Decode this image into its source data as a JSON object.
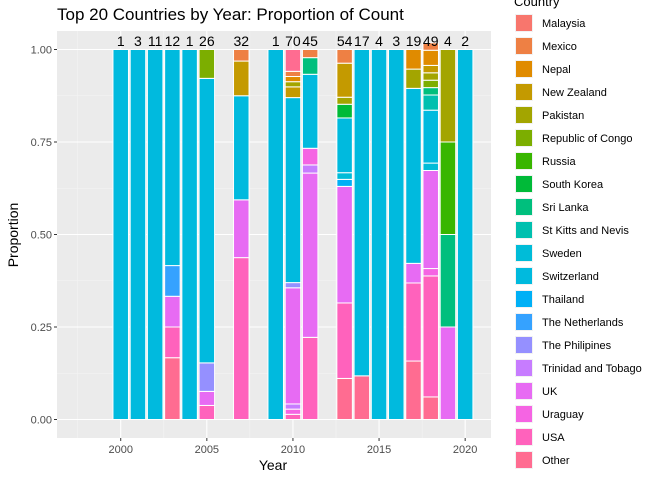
{
  "chart_data": {
    "type": "bar",
    "title": "Top 20 Countries by Year: Proportion of Count",
    "xlabel": "Year",
    "ylabel": "Proportion",
    "xlim": [
      1996.3,
      2021.5
    ],
    "ylim": [
      -0.05,
      1.05
    ],
    "x_ticks": [
      2000,
      2005,
      2010,
      2015,
      2020
    ],
    "y_ticks": [
      0,
      0.25,
      0.5,
      0.75,
      1
    ],
    "y_tick_labels": [
      "0.00",
      "0.25",
      "0.50",
      "0.75",
      "1.00"
    ],
    "grid": true,
    "legend_position": "right",
    "legend": {
      "title": "Country",
      "entries": [
        {
          "name": "Malaysia",
          "color": "#F8766D"
        },
        {
          "name": "Mexico",
          "color": "#EE8044"
        },
        {
          "name": "Nepal",
          "color": "#E08B00"
        },
        {
          "name": "New Zealand",
          "color": "#C49A00"
        },
        {
          "name": "Pakistan",
          "color": "#A3A500"
        },
        {
          "name": "Republic of Congo",
          "color": "#7CAE00"
        },
        {
          "name": "Russia",
          "color": "#39B600"
        },
        {
          "name": "South Korea",
          "color": "#00BA38"
        },
        {
          "name": "Sri Lanka",
          "color": "#00BF7D"
        },
        {
          "name": "St Kitts and Nevis",
          "color": "#00C0AF"
        },
        {
          "name": "Sweden",
          "color": "#00BCD8"
        },
        {
          "name": "Switzerland",
          "color": "#00BADE"
        },
        {
          "name": "Thailand",
          "color": "#00B0F6"
        },
        {
          "name": "The Netherlands",
          "color": "#35A2FF"
        },
        {
          "name": "The Philipines",
          "color": "#9590FF"
        },
        {
          "name": "Trinidad and Tobago",
          "color": "#C77CFF"
        },
        {
          "name": "UK",
          "color": "#E76BF3"
        },
        {
          "name": "Uraguay",
          "color": "#F564E3"
        },
        {
          "name": "USA",
          "color": "#FF62BC"
        },
        {
          "name": "Other",
          "color": "#FF6C91"
        }
      ]
    },
    "bars": [
      {
        "year": 2000,
        "count": "1",
        "segments": [
          [
            "Switzerland",
            1
          ]
        ]
      },
      {
        "year": 2001,
        "count": "3",
        "segments": [
          [
            "Switzerland",
            1
          ]
        ]
      },
      {
        "year": 2002,
        "count": "11",
        "segments": [
          [
            "Switzerland",
            1
          ]
        ]
      },
      {
        "year": 2003,
        "count": "12",
        "segments": [
          [
            "Other",
            0.167
          ],
          [
            "USA",
            0.083
          ],
          [
            "UK",
            0.083
          ],
          [
            "The Netherlands",
            0.083
          ],
          [
            "Switzerland",
            0.584
          ]
        ]
      },
      {
        "year": 2004,
        "count": "1",
        "segments": [
          [
            "Switzerland",
            1
          ]
        ]
      },
      {
        "year": 2005,
        "count": "26",
        "segments": [
          [
            "USA",
            0.038
          ],
          [
            "UK",
            0.038
          ],
          [
            "The Philipines",
            0.077
          ],
          [
            "Switzerland",
            0.769
          ],
          [
            "Republic of Congo",
            0.078
          ]
        ]
      },
      {
        "year": 2007,
        "count": "32",
        "segments": [
          [
            "USA",
            0.4375
          ],
          [
            "UK",
            0.15625
          ],
          [
            "Switzerland",
            0.28125
          ],
          [
            "New Zealand",
            0.09375
          ],
          [
            "Mexico",
            0.03125
          ]
        ]
      },
      {
        "year": 2009,
        "count": "1",
        "segments": [
          [
            "Switzerland",
            1
          ]
        ]
      },
      {
        "year": 2010,
        "count": "70",
        "segments": [
          [
            "USA",
            0.014
          ],
          [
            "Uraguay",
            0.014
          ],
          [
            "Trinidad and Tobago",
            0.014
          ],
          [
            "UK",
            0.314
          ],
          [
            "The Philipines",
            0.014
          ],
          [
            "Switzerland",
            0.5
          ],
          [
            "New Zealand",
            0.029
          ],
          [
            "Pakistan",
            0.014
          ],
          [
            "Nepal",
            0.014
          ],
          [
            "Mexico",
            0.014
          ],
          [
            "Other",
            0.059
          ]
        ]
      },
      {
        "year": 2011,
        "count": "45",
        "segments": [
          [
            "USA",
            0.222
          ],
          [
            "UK",
            0.444
          ],
          [
            "Trinidad and Tobago",
            0.022
          ],
          [
            "Uraguay",
            0.045
          ],
          [
            "Switzerland",
            0.2
          ],
          [
            "Sri Lanka",
            0.045
          ],
          [
            "Mexico",
            0.022
          ]
        ]
      },
      {
        "year": 2013,
        "count": "54",
        "segments": [
          [
            "Other",
            0.111
          ],
          [
            "USA",
            0.204
          ],
          [
            "UK",
            0.315
          ],
          [
            "Thailand",
            0.019
          ],
          [
            "Sweden",
            0.018
          ],
          [
            "Switzerland",
            0.148
          ],
          [
            "South Korea",
            0.037
          ],
          [
            "Pakistan",
            0.019
          ],
          [
            "New Zealand",
            0.092
          ],
          [
            "Mexico",
            0.037
          ]
        ]
      },
      {
        "year": 2014,
        "count": "17",
        "segments": [
          [
            "Other",
            0.118
          ],
          [
            "Switzerland",
            0.882
          ]
        ]
      },
      {
        "year": 2015,
        "count": "4",
        "segments": [
          [
            "Switzerland",
            1
          ]
        ]
      },
      {
        "year": 2016,
        "count": "3",
        "segments": [
          [
            "Switzerland",
            1
          ]
        ]
      },
      {
        "year": 2017,
        "count": "19",
        "segments": [
          [
            "Other",
            0.158
          ],
          [
            "USA",
            0.211
          ],
          [
            "UK",
            0.053
          ],
          [
            "Switzerland",
            0.473
          ],
          [
            "Pakistan",
            0.052
          ],
          [
            "Nepal",
            0.053
          ]
        ]
      },
      {
        "year": 2018,
        "count": "49",
        "segments": [
          [
            "Other",
            0.061
          ],
          [
            "USA",
            0.327
          ],
          [
            "Uraguay",
            0.02
          ],
          [
            "UK",
            0.265
          ],
          [
            "Sweden",
            0.02
          ],
          [
            "Switzerland",
            0.143
          ],
          [
            "St Kitts and Nevis",
            0.041
          ],
          [
            "Sri Lanka",
            0.02
          ],
          [
            "Republic of Congo",
            0.02
          ],
          [
            "Pakistan",
            0.02
          ],
          [
            "New Zealand",
            0.02
          ],
          [
            "Nepal",
            0.041
          ],
          [
            "Mexico",
            0.02
          ]
        ]
      },
      {
        "year": 2019,
        "count": "4",
        "segments": [
          [
            "UK",
            0.25
          ],
          [
            "Sri Lanka",
            0.25
          ],
          [
            "Russia",
            0.25
          ],
          [
            "Pakistan",
            0.25
          ]
        ]
      },
      {
        "year": 2020,
        "count": "2",
        "segments": [
          [
            "Switzerland",
            1
          ]
        ]
      }
    ]
  }
}
